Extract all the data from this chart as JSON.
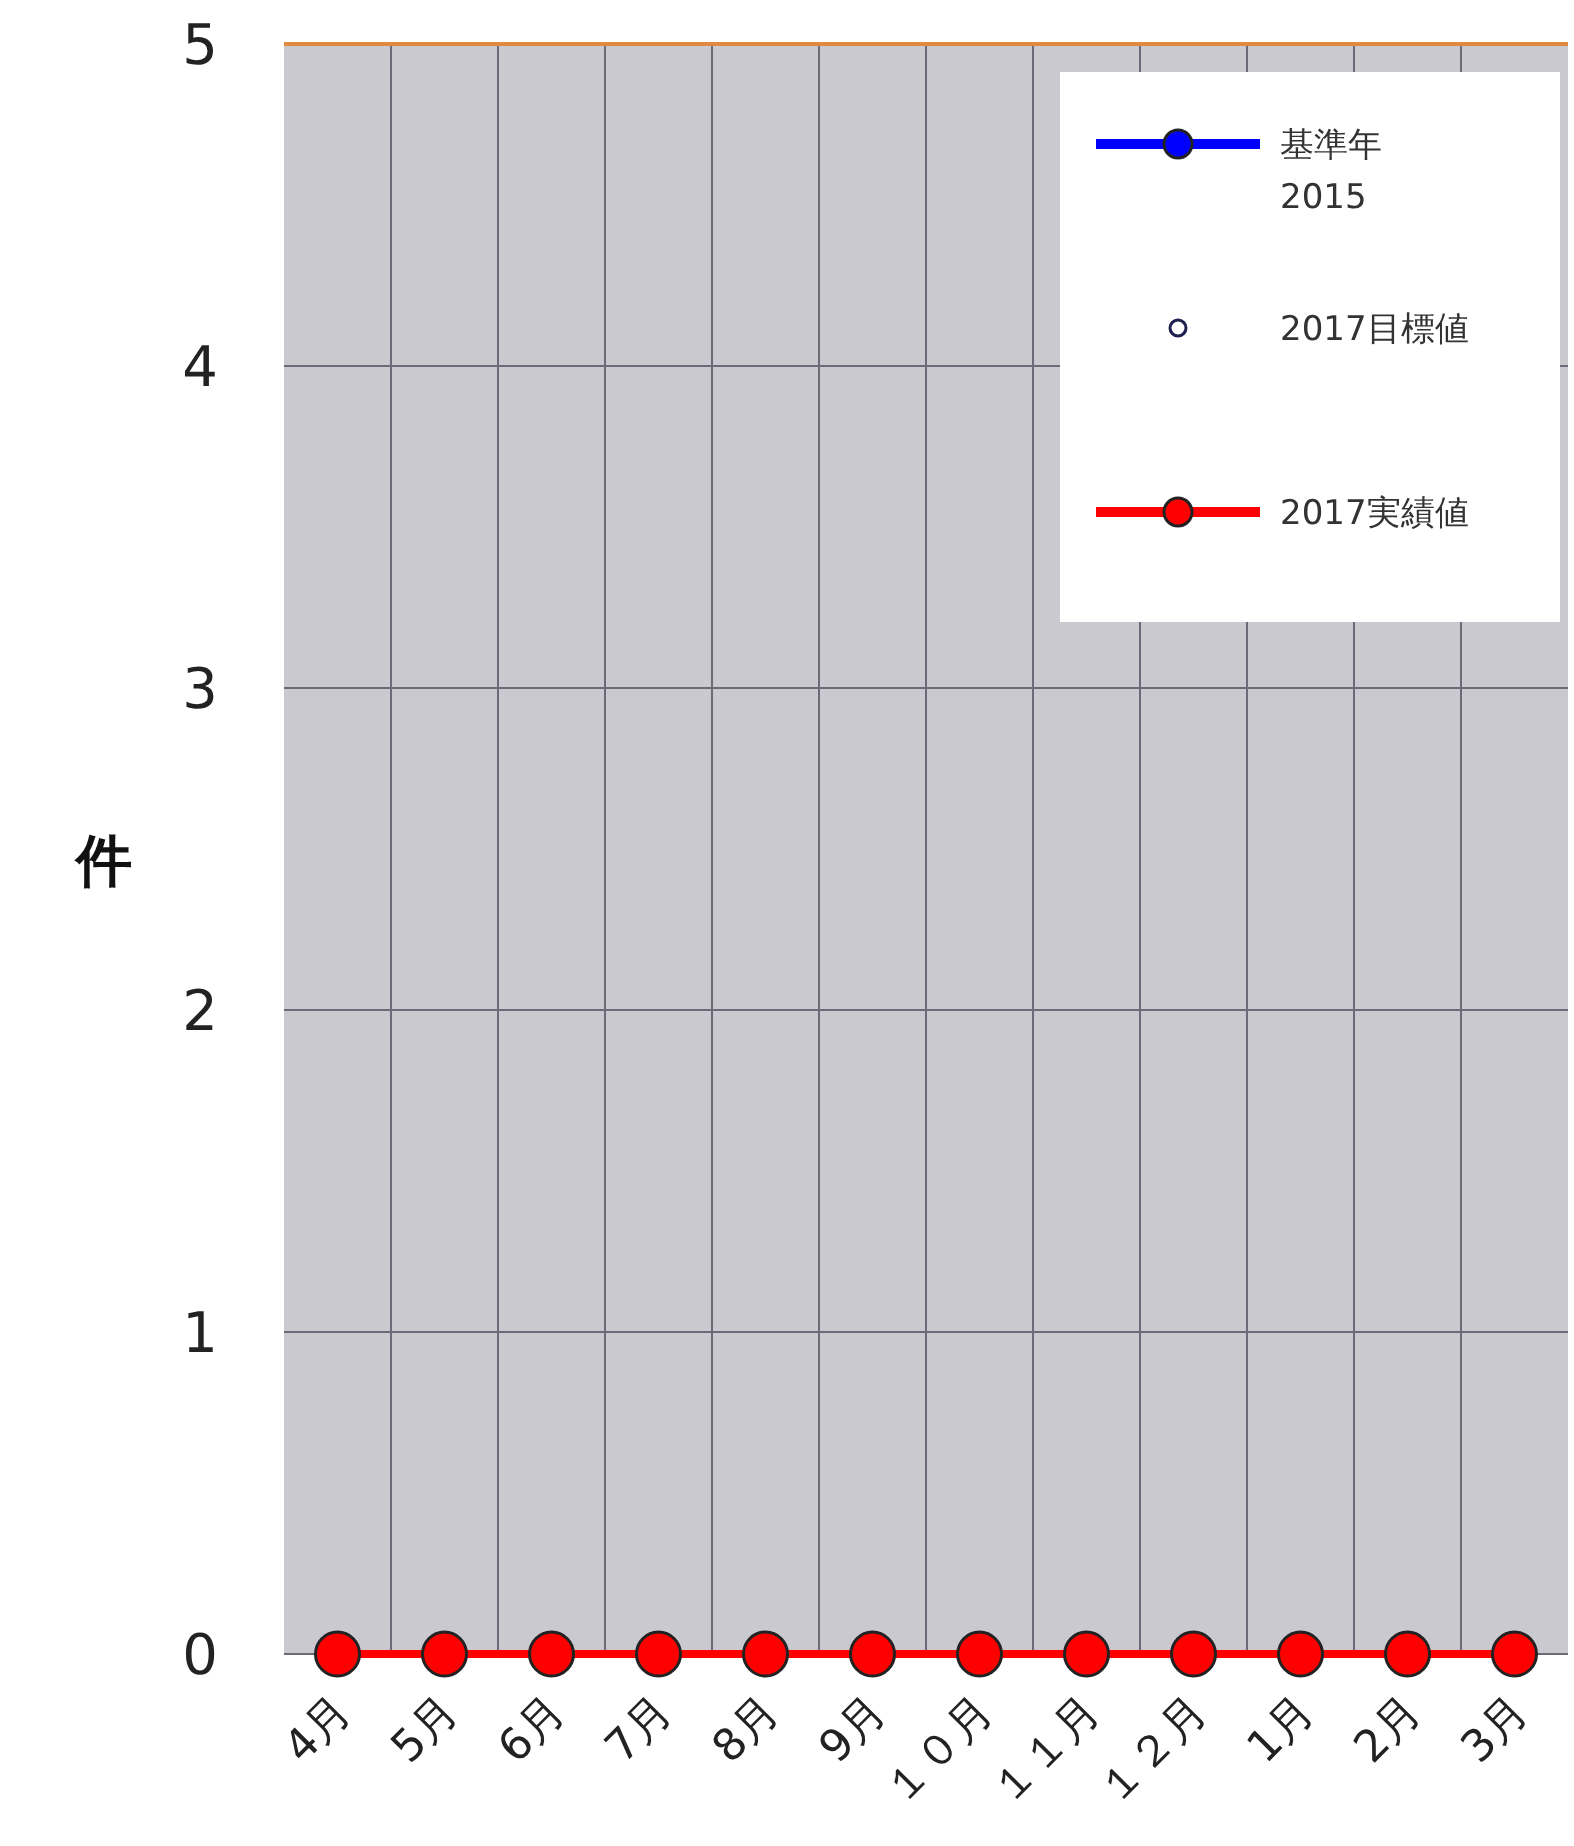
{
  "chart_data": {
    "type": "line",
    "ylabel": "件",
    "categories": [
      "4月",
      "5月",
      "6月",
      "7月",
      "8月",
      "9月",
      "１０月",
      "１１月",
      "１２月",
      "1月",
      "2月",
      "3月"
    ],
    "series": [
      {
        "name": "基準年\n2015",
        "color": "#0000ff",
        "marker": "circle",
        "values": [
          null,
          null,
          null,
          null,
          null,
          null,
          null,
          null,
          null,
          null,
          null,
          null
        ]
      },
      {
        "name": "2017目標値",
        "type": "scatter",
        "color": "#202050",
        "marker": "circle",
        "values": [
          null,
          null,
          null,
          null,
          null,
          null,
          null,
          null,
          null,
          null,
          null,
          null
        ]
      },
      {
        "name": "2017実績値",
        "color": "#ff0000",
        "marker": "circle",
        "values": [
          0,
          0,
          0,
          0,
          0,
          0,
          0,
          0,
          0,
          0,
          0,
          0
        ]
      }
    ],
    "ylim": [
      0,
      5
    ],
    "yticks": [
      0,
      1,
      2,
      3,
      4,
      5
    ],
    "grid": true,
    "legend": "top right"
  }
}
